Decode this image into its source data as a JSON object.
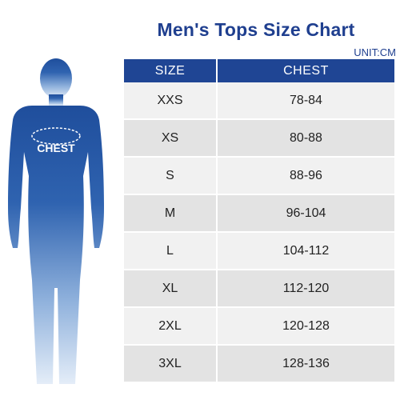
{
  "title": "Men's Tops Size Chart",
  "unit": "UNIT:CM",
  "figure_label": "CHEST",
  "colors": {
    "accent": "#1f4594",
    "title": "#1f3f8f"
  },
  "table": {
    "headers": [
      "SIZE",
      "CHEST"
    ],
    "rows": [
      [
        "XXS",
        "78-84"
      ],
      [
        "XS",
        "80-88"
      ],
      [
        "S",
        "88-96"
      ],
      [
        "M",
        "96-104"
      ],
      [
        "L",
        "104-112"
      ],
      [
        "XL",
        "112-120"
      ],
      [
        "2XL",
        "120-128"
      ],
      [
        "3XL",
        "128-136"
      ]
    ]
  }
}
